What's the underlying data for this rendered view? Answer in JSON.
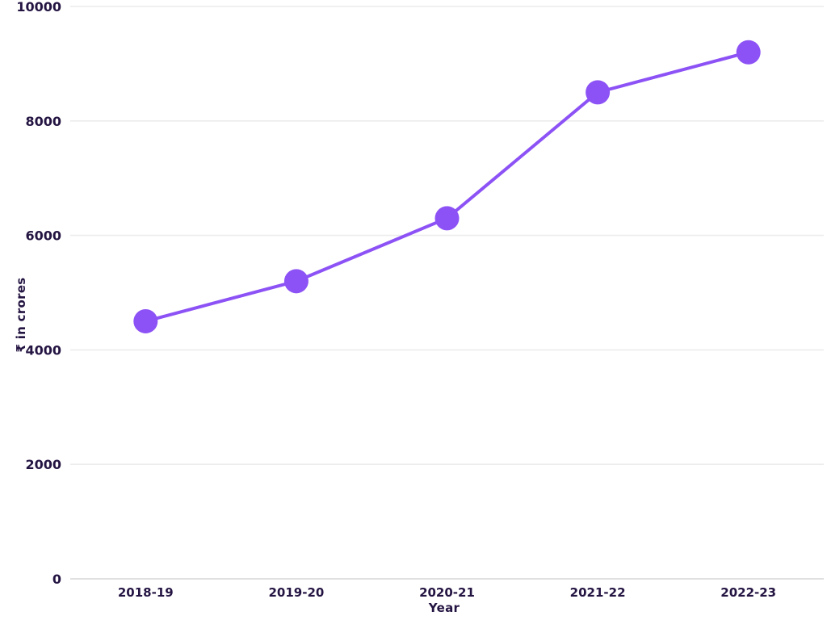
{
  "chart_data": {
    "type": "line",
    "title": "",
    "categories": [
      "2018-19",
      "2019-20",
      "2020-21",
      "2021-22",
      "2022-23"
    ],
    "series": [
      {
        "name": "₹ in crores",
        "values": [
          4500,
          5200,
          6300,
          8500,
          9200
        ]
      }
    ],
    "xlabel": "Year",
    "ylabel": "₹ in crores",
    "ylim": [
      0,
      10000
    ],
    "yticks": [
      0,
      2000,
      4000,
      6000,
      8000,
      10000
    ],
    "grid": true,
    "legend": false,
    "marker_radius": 15,
    "line_width": 4,
    "colors": {
      "line": "#8c52f5",
      "marker": "#8c52f5",
      "gridline": "#ececec",
      "axis_line": "#d6d6d6",
      "text": "#241442",
      "background": "#ffffff"
    }
  }
}
